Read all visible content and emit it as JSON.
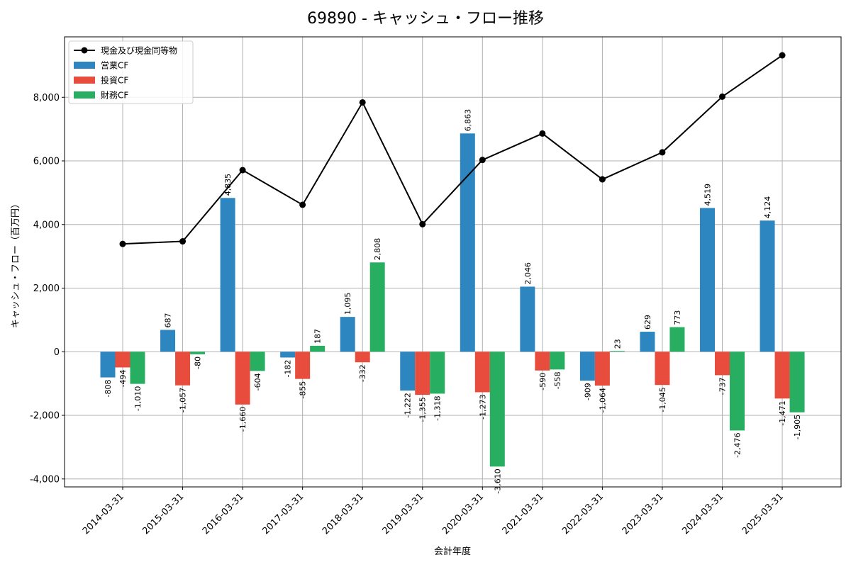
{
  "chart_data": {
    "type": "bar",
    "title": "69890 - キャッシュ・フロー推移",
    "xlabel": "会計年度",
    "ylabel": "キャッシュ・フロー（百万円）",
    "categories": [
      "2014-03-31",
      "2015-03-31",
      "2016-03-31",
      "2017-03-31",
      "2018-03-31",
      "2019-03-31",
      "2020-03-31",
      "2021-03-31",
      "2022-03-31",
      "2023-03-31",
      "2024-03-31",
      "2025-03-31"
    ],
    "ylim": [
      -4250,
      9900
    ],
    "yticks": [
      -4000,
      -2000,
      0,
      2000,
      4000,
      6000,
      8000
    ],
    "ytick_labels": [
      "-4,000",
      "-2,000",
      "0",
      "2,000",
      "4,000",
      "6,000",
      "8,000"
    ],
    "grid": true,
    "legend_position": "top-left",
    "series": [
      {
        "name": "営業CF",
        "kind": "bar",
        "color": "#2e86c1",
        "values": [
          -808,
          687,
          4835,
          -182,
          1095,
          -1222,
          6863,
          2046,
          -909,
          629,
          4519,
          4124
        ],
        "labels": [
          "-808",
          "687",
          "4,835",
          "-182",
          "1,095",
          "-1,222",
          "6,863",
          "2,046",
          "-909",
          "629",
          "4,519",
          "4,124"
        ]
      },
      {
        "name": "投資CF",
        "kind": "bar",
        "color": "#e74c3c",
        "values": [
          -494,
          -1057,
          -1660,
          -855,
          -332,
          -1355,
          -1273,
          -590,
          -1064,
          -1045,
          -737,
          -1471
        ],
        "labels": [
          "-494",
          "-1,057",
          "-1,660",
          "-855",
          "-332",
          "-1,355",
          "-1,273",
          "-590",
          "-1,064",
          "-1,045",
          "-737",
          "-1,471"
        ]
      },
      {
        "name": "財務CF",
        "kind": "bar",
        "color": "#27ae60",
        "values": [
          -1010,
          -80,
          -604,
          187,
          2808,
          -1318,
          -3610,
          -558,
          23,
          773,
          -2476,
          -1905
        ],
        "labels": [
          "-1,010",
          "-80",
          "-604",
          "187",
          "2,808",
          "-1,318",
          "-3,610",
          "-558",
          "23",
          "773",
          "-2,476",
          "-1,905"
        ]
      },
      {
        "name": "現金及び現金同等物",
        "kind": "line",
        "color": "#000000",
        "values": [
          3390,
          3470,
          5710,
          4620,
          7840,
          4010,
          6030,
          6860,
          5420,
          6270,
          8020,
          9320
        ]
      }
    ]
  }
}
